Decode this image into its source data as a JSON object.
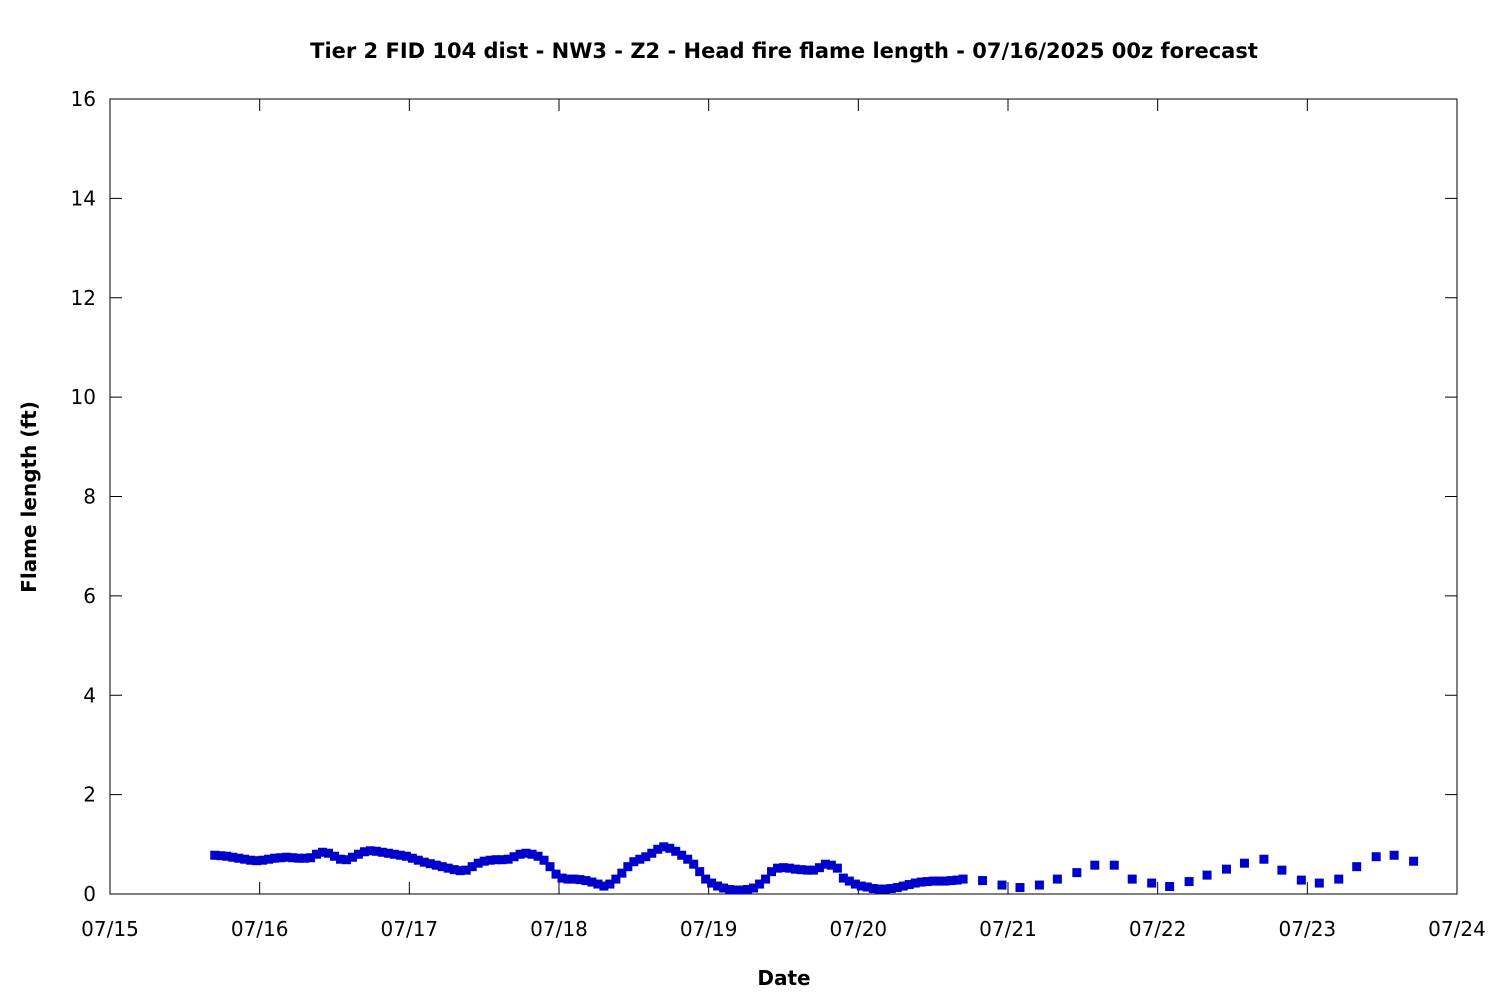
{
  "chart_data": {
    "type": "scatter",
    "title": "Tier 2 FID 104 dist - NW3 - Z2 - Head fire flame length - 07/16/2025 00z forecast",
    "xlabel": "Date",
    "ylabel": "Flame length (ft)",
    "x_unit": "days since 07/15 00:00 (date axis)",
    "xlim": [
      "07/15",
      "07/24"
    ],
    "ylim": [
      0,
      16
    ],
    "x_ticks": [
      "07/15",
      "07/16",
      "07/17",
      "07/18",
      "07/19",
      "07/20",
      "07/21",
      "07/22",
      "07/23",
      "07/24"
    ],
    "y_ticks": [
      "0",
      "2",
      "4",
      "6",
      "8",
      "10",
      "12",
      "14",
      "16"
    ],
    "grid": false,
    "marker_color": "#0000cc",
    "series": [
      {
        "x": [
          0.7,
          0.74,
          0.78,
          0.82,
          0.86,
          0.9,
          0.94,
          0.98,
          1.02,
          1.06,
          1.1,
          1.14,
          1.18,
          1.22,
          1.26,
          1.3,
          1.34,
          1.38,
          1.42,
          1.46,
          1.5,
          1.54,
          1.58,
          1.62,
          1.66,
          1.7,
          1.74,
          1.78,
          1.82,
          1.86,
          1.9,
          1.94,
          1.98,
          2.02,
          2.06,
          2.1,
          2.14,
          2.18,
          2.22,
          2.26,
          2.3,
          2.34,
          2.38,
          2.42,
          2.46,
          2.5,
          2.54,
          2.58,
          2.62,
          2.66,
          2.7,
          2.74,
          2.78,
          2.82,
          2.86,
          2.9,
          2.94,
          2.98,
          3.02,
          3.06,
          3.1,
          3.14,
          3.18,
          3.22,
          3.26,
          3.3,
          3.34,
          3.38,
          3.42,
          3.46,
          3.5,
          3.54,
          3.58,
          3.62,
          3.66,
          3.7,
          3.74,
          3.78,
          3.82,
          3.86,
          3.9,
          3.94,
          3.98,
          4.02,
          4.06,
          4.1,
          4.14,
          4.18,
          4.22,
          4.26,
          4.3,
          4.34,
          4.38,
          4.42,
          4.46,
          4.5,
          4.54,
          4.58,
          4.62,
          4.66,
          4.7,
          4.74,
          4.78,
          4.82,
          4.86,
          4.9,
          4.94,
          4.98,
          5.02,
          5.06,
          5.1,
          5.14,
          5.18,
          5.22,
          5.26,
          5.3,
          5.34,
          5.38,
          5.42,
          5.46,
          5.5,
          5.54,
          5.58,
          5.62,
          5.66,
          5.7,
          5.83,
          5.96,
          6.08,
          6.21,
          6.33,
          6.46,
          6.58,
          6.71,
          6.83,
          6.96,
          7.08,
          7.21,
          7.33,
          7.46,
          7.58,
          7.71,
          7.83,
          7.96,
          8.08,
          8.21,
          8.33,
          8.46,
          8.58,
          8.71
        ],
        "y": [
          0.78,
          0.77,
          0.76,
          0.74,
          0.72,
          0.7,
          0.68,
          0.67,
          0.68,
          0.7,
          0.72,
          0.73,
          0.74,
          0.73,
          0.72,
          0.72,
          0.73,
          0.8,
          0.84,
          0.82,
          0.76,
          0.7,
          0.69,
          0.74,
          0.8,
          0.85,
          0.87,
          0.86,
          0.84,
          0.82,
          0.8,
          0.78,
          0.76,
          0.72,
          0.68,
          0.64,
          0.61,
          0.58,
          0.55,
          0.52,
          0.49,
          0.47,
          0.48,
          0.55,
          0.62,
          0.66,
          0.68,
          0.69,
          0.69,
          0.7,
          0.75,
          0.8,
          0.82,
          0.8,
          0.76,
          0.68,
          0.55,
          0.4,
          0.32,
          0.3,
          0.3,
          0.29,
          0.27,
          0.24,
          0.2,
          0.16,
          0.2,
          0.3,
          0.42,
          0.55,
          0.65,
          0.7,
          0.75,
          0.82,
          0.9,
          0.95,
          0.92,
          0.86,
          0.78,
          0.7,
          0.6,
          0.45,
          0.3,
          0.22,
          0.16,
          0.12,
          0.09,
          0.08,
          0.08,
          0.09,
          0.12,
          0.2,
          0.3,
          0.45,
          0.52,
          0.53,
          0.52,
          0.5,
          0.49,
          0.48,
          0.48,
          0.53,
          0.6,
          0.58,
          0.52,
          0.32,
          0.26,
          0.2,
          0.16,
          0.14,
          0.11,
          0.1,
          0.1,
          0.11,
          0.13,
          0.16,
          0.19,
          0.22,
          0.24,
          0.25,
          0.26,
          0.26,
          0.26,
          0.27,
          0.28,
          0.3,
          0.27,
          0.18,
          0.13,
          0.18,
          0.3,
          0.43,
          0.58,
          0.58,
          0.3,
          0.22,
          0.15,
          0.25,
          0.38,
          0.5,
          0.62,
          0.7,
          0.48,
          0.28,
          0.22,
          0.3,
          0.55,
          0.75,
          0.78,
          0.66
        ]
      }
    ]
  }
}
